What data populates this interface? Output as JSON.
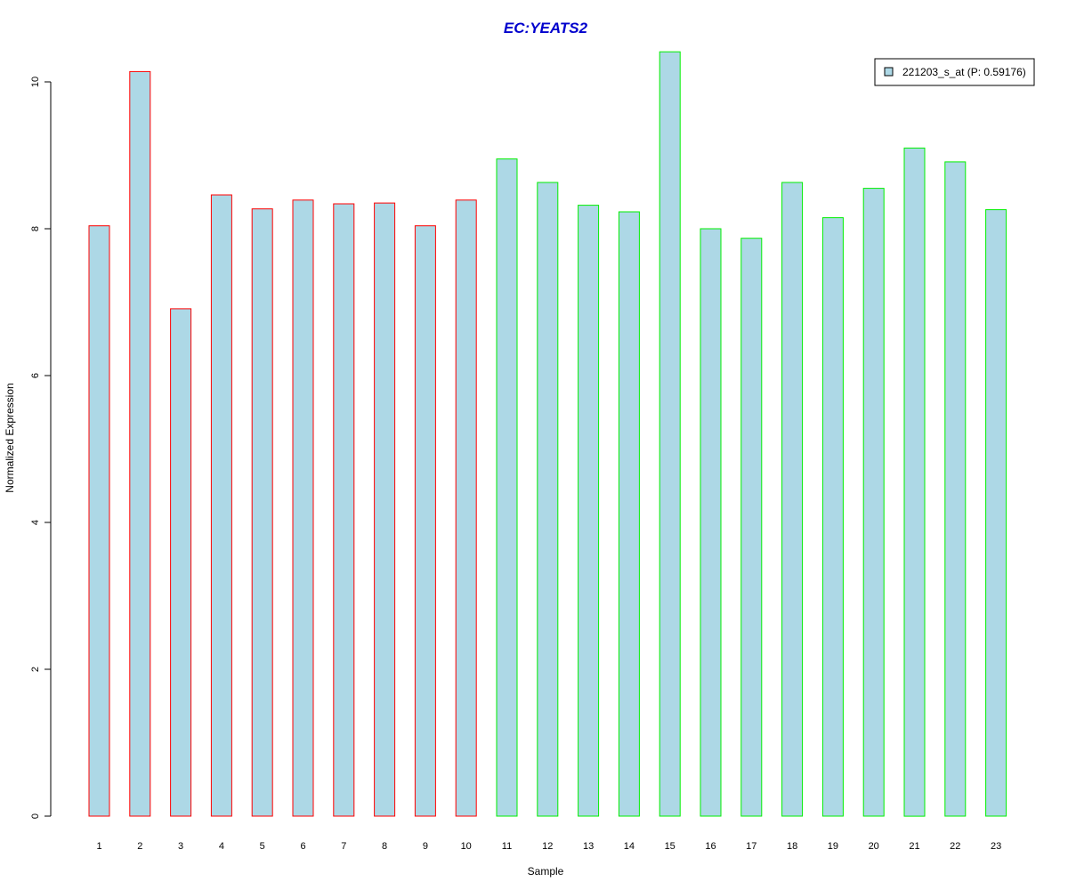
{
  "chart_data": {
    "type": "bar",
    "title": "EC:YEATS2",
    "xlabel": "Sample",
    "ylabel": "Normalized Expression",
    "categories": [
      "1",
      "2",
      "3",
      "4",
      "5",
      "6",
      "7",
      "8",
      "9",
      "10",
      "11",
      "12",
      "13",
      "14",
      "15",
      "16",
      "17",
      "18",
      "19",
      "20",
      "21",
      "22",
      "23"
    ],
    "series": [
      {
        "name": "221203_s_at (P: 0.59176)",
        "values": [
          8.04,
          10.14,
          6.91,
          8.46,
          8.27,
          8.39,
          8.34,
          8.35,
          8.04,
          8.39,
          8.95,
          8.63,
          8.32,
          8.23,
          10.41,
          8.0,
          7.87,
          8.63,
          8.15,
          8.55,
          9.1,
          8.91,
          8.26
        ]
      }
    ],
    "group_colors": [
      "#ff0000",
      "#ff0000",
      "#ff0000",
      "#ff0000",
      "#ff0000",
      "#ff0000",
      "#ff0000",
      "#ff0000",
      "#ff0000",
      "#ff0000",
      "#00ee00",
      "#00ee00",
      "#00ee00",
      "#00ee00",
      "#00ee00",
      "#00ee00",
      "#00ee00",
      "#00ee00",
      "#00ee00",
      "#00ee00",
      "#00ee00",
      "#00ee00",
      "#00ee00"
    ],
    "yticks": [
      0,
      2,
      4,
      6,
      8,
      10
    ],
    "ylim": [
      0,
      10.5
    ],
    "bar_fill": "#add8e6",
    "title_color": "#0000cd",
    "legend_position": "top-right",
    "grid": false
  }
}
